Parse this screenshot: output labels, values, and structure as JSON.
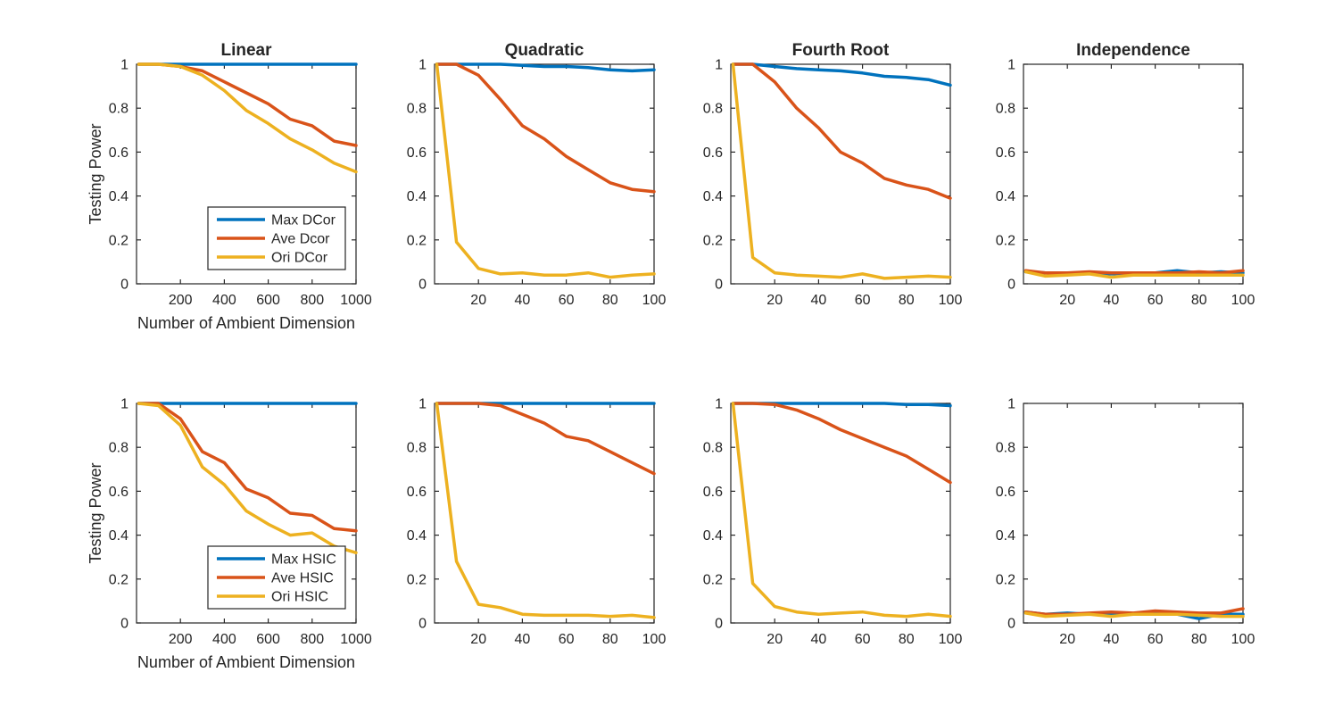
{
  "figure": {
    "background": "#ffffff",
    "description": "2x4 grid of MATLAB-style line plots of testing power vs dimension"
  },
  "colors": {
    "max": "#0072BD",
    "ave": "#D95319",
    "ori": "#EDB120",
    "axis": "#262626",
    "legend_bg": "#ffffff"
  },
  "chart_data": [
    {
      "type": "line",
      "title": "Linear",
      "xlabel": "Number of Ambient Dimension",
      "ylabel": "Testing Power",
      "x": [
        10,
        100,
        200,
        300,
        400,
        500,
        600,
        700,
        800,
        900,
        1000
      ],
      "xlim": [
        0,
        1000
      ],
      "ylim": [
        0,
        1
      ],
      "xticks": [
        200,
        400,
        600,
        800,
        1000
      ],
      "xtick_labels": [
        "200",
        "400",
        "600",
        "800",
        "1000"
      ],
      "yticks": [
        0,
        0.2,
        0.4,
        0.6,
        0.8,
        1
      ],
      "ytick_labels": [
        "0",
        "0.2",
        "0.4",
        "0.6",
        "0.8",
        "1"
      ],
      "grid": false,
      "legend_visible": true,
      "legend_position": "inside lower right",
      "series": [
        {
          "name": "Max DCor",
          "color_key": "max",
          "values": [
            1,
            1,
            1,
            1,
            1,
            1,
            1,
            1,
            1,
            1,
            1
          ]
        },
        {
          "name": "Ave Dcor",
          "color_key": "ave",
          "values": [
            1,
            1,
            0.99,
            0.97,
            0.92,
            0.87,
            0.82,
            0.75,
            0.72,
            0.65,
            0.63
          ]
        },
        {
          "name": "Ori DCor",
          "color_key": "ori",
          "values": [
            1,
            1,
            0.99,
            0.95,
            0.88,
            0.79,
            0.73,
            0.66,
            0.61,
            0.55,
            0.51
          ]
        }
      ]
    },
    {
      "type": "line",
      "title": "Quadratic",
      "xlabel": "",
      "ylabel": "",
      "x": [
        1,
        10,
        20,
        30,
        40,
        50,
        60,
        70,
        80,
        90,
        100
      ],
      "xlim": [
        0,
        100
      ],
      "ylim": [
        0,
        1
      ],
      "xticks": [
        20,
        40,
        60,
        80,
        100
      ],
      "xtick_labels": [
        "20",
        "40",
        "60",
        "80",
        "100"
      ],
      "yticks": [
        0,
        0.2,
        0.4,
        0.6,
        0.8,
        1
      ],
      "ytick_labels": [
        "0",
        "0.2",
        "0.4",
        "0.6",
        "0.8",
        "1"
      ],
      "grid": false,
      "legend_visible": false,
      "series": [
        {
          "name": "Max DCor",
          "color_key": "max",
          "values": [
            1,
            1,
            1,
            1,
            0.995,
            0.99,
            0.99,
            0.985,
            0.975,
            0.97,
            0.975
          ]
        },
        {
          "name": "Ave Dcor",
          "color_key": "ave",
          "values": [
            1,
            1,
            0.95,
            0.84,
            0.72,
            0.66,
            0.58,
            0.52,
            0.46,
            0.43,
            0.42
          ]
        },
        {
          "name": "Ori DCor",
          "color_key": "ori",
          "values": [
            1,
            0.19,
            0.07,
            0.045,
            0.05,
            0.04,
            0.04,
            0.05,
            0.03,
            0.04,
            0.045
          ]
        }
      ]
    },
    {
      "type": "line",
      "title": "Fourth Root",
      "xlabel": "",
      "ylabel": "",
      "x": [
        1,
        10,
        20,
        30,
        40,
        50,
        60,
        70,
        80,
        90,
        100
      ],
      "xlim": [
        0,
        100
      ],
      "ylim": [
        0,
        1
      ],
      "xticks": [
        20,
        40,
        60,
        80,
        100
      ],
      "xtick_labels": [
        "20",
        "40",
        "60",
        "80",
        "100"
      ],
      "yticks": [
        0,
        0.2,
        0.4,
        0.6,
        0.8,
        1
      ],
      "ytick_labels": [
        "0",
        "0.2",
        "0.4",
        "0.6",
        "0.8",
        "1"
      ],
      "grid": false,
      "legend_visible": false,
      "series": [
        {
          "name": "Max DCor",
          "color_key": "max",
          "values": [
            1,
            1,
            0.99,
            0.98,
            0.975,
            0.97,
            0.96,
            0.945,
            0.94,
            0.93,
            0.905
          ]
        },
        {
          "name": "Ave Dcor",
          "color_key": "ave",
          "values": [
            1,
            1,
            0.92,
            0.8,
            0.71,
            0.6,
            0.55,
            0.48,
            0.45,
            0.43,
            0.39
          ]
        },
        {
          "name": "Ori DCor",
          "color_key": "ori",
          "values": [
            1,
            0.12,
            0.05,
            0.04,
            0.035,
            0.03,
            0.045,
            0.025,
            0.03,
            0.035,
            0.03
          ]
        }
      ]
    },
    {
      "type": "line",
      "title": "Independence",
      "xlabel": "",
      "ylabel": "",
      "x": [
        1,
        10,
        20,
        30,
        40,
        50,
        60,
        70,
        80,
        90,
        100
      ],
      "xlim": [
        0,
        100
      ],
      "ylim": [
        0,
        1
      ],
      "xticks": [
        20,
        40,
        60,
        80,
        100
      ],
      "xtick_labels": [
        "20",
        "40",
        "60",
        "80",
        "100"
      ],
      "yticks": [
        0,
        0.2,
        0.4,
        0.6,
        0.8,
        1
      ],
      "ytick_labels": [
        "0",
        "0.2",
        "0.4",
        "0.6",
        "0.8",
        "1"
      ],
      "grid": false,
      "legend_visible": false,
      "series": [
        {
          "name": "Max DCor",
          "color_key": "max",
          "values": [
            0.055,
            0.05,
            0.05,
            0.05,
            0.045,
            0.05,
            0.05,
            0.06,
            0.05,
            0.055,
            0.05
          ]
        },
        {
          "name": "Ave Dcor",
          "color_key": "ave",
          "values": [
            0.06,
            0.05,
            0.05,
            0.055,
            0.05,
            0.05,
            0.05,
            0.05,
            0.055,
            0.05,
            0.06
          ]
        },
        {
          "name": "Ori DCor",
          "color_key": "ori",
          "values": [
            0.055,
            0.035,
            0.04,
            0.045,
            0.03,
            0.04,
            0.04,
            0.04,
            0.04,
            0.04,
            0.04
          ]
        }
      ]
    },
    {
      "type": "line",
      "title": "",
      "xlabel": "Number of Ambient Dimension",
      "ylabel": "Testing Power",
      "x": [
        10,
        100,
        200,
        300,
        400,
        500,
        600,
        700,
        800,
        900,
        1000
      ],
      "xlim": [
        0,
        1000
      ],
      "ylim": [
        0,
        1
      ],
      "xticks": [
        200,
        400,
        600,
        800,
        1000
      ],
      "xtick_labels": [
        "200",
        "400",
        "600",
        "800",
        "1000"
      ],
      "yticks": [
        0,
        0.2,
        0.4,
        0.6,
        0.8,
        1
      ],
      "ytick_labels": [
        "0",
        "0.2",
        "0.4",
        "0.6",
        "0.8",
        "1"
      ],
      "grid": false,
      "legend_visible": true,
      "legend_position": "inside lower right",
      "series": [
        {
          "name": "Max HSIC",
          "color_key": "max",
          "values": [
            1,
            1,
            1,
            1,
            1,
            1,
            1,
            1,
            1,
            1,
            1
          ]
        },
        {
          "name": "Ave HSIC",
          "color_key": "ave",
          "values": [
            1,
            1,
            0.93,
            0.78,
            0.73,
            0.61,
            0.57,
            0.5,
            0.49,
            0.43,
            0.42
          ]
        },
        {
          "name": "Ori HSIC",
          "color_key": "ori",
          "values": [
            1,
            0.99,
            0.9,
            0.71,
            0.63,
            0.51,
            0.45,
            0.4,
            0.41,
            0.35,
            0.32
          ]
        }
      ]
    },
    {
      "type": "line",
      "title": "",
      "xlabel": "",
      "ylabel": "",
      "x": [
        1,
        10,
        20,
        30,
        40,
        50,
        60,
        70,
        80,
        90,
        100
      ],
      "xlim": [
        0,
        100
      ],
      "ylim": [
        0,
        1
      ],
      "xticks": [
        20,
        40,
        60,
        80,
        100
      ],
      "xtick_labels": [
        "20",
        "40",
        "60",
        "80",
        "100"
      ],
      "yticks": [
        0,
        0.2,
        0.4,
        0.6,
        0.8,
        1
      ],
      "ytick_labels": [
        "0",
        "0.2",
        "0.4",
        "0.6",
        "0.8",
        "1"
      ],
      "grid": false,
      "legend_visible": false,
      "series": [
        {
          "name": "Max HSIC",
          "color_key": "max",
          "values": [
            1,
            1,
            1,
            1,
            1,
            1,
            1,
            1,
            1,
            1,
            1
          ]
        },
        {
          "name": "Ave HSIC",
          "color_key": "ave",
          "values": [
            1,
            1,
            1,
            0.99,
            0.95,
            0.91,
            0.85,
            0.83,
            0.78,
            0.73,
            0.68
          ]
        },
        {
          "name": "Ori HSIC",
          "color_key": "ori",
          "values": [
            1,
            0.28,
            0.085,
            0.07,
            0.04,
            0.035,
            0.035,
            0.035,
            0.03,
            0.035,
            0.025
          ]
        }
      ]
    },
    {
      "type": "line",
      "title": "",
      "xlabel": "",
      "ylabel": "",
      "x": [
        1,
        10,
        20,
        30,
        40,
        50,
        60,
        70,
        80,
        90,
        100
      ],
      "xlim": [
        0,
        100
      ],
      "ylim": [
        0,
        1
      ],
      "xticks": [
        20,
        40,
        60,
        80,
        100
      ],
      "xtick_labels": [
        "20",
        "40",
        "60",
        "80",
        "100"
      ],
      "yticks": [
        0,
        0.2,
        0.4,
        0.6,
        0.8,
        1
      ],
      "ytick_labels": [
        "0",
        "0.2",
        "0.4",
        "0.6",
        "0.8",
        "1"
      ],
      "grid": false,
      "legend_visible": false,
      "series": [
        {
          "name": "Max HSIC",
          "color_key": "max",
          "values": [
            1,
            1,
            1,
            1,
            1,
            1,
            1,
            1,
            0.995,
            0.995,
            0.99
          ]
        },
        {
          "name": "Ave HSIC",
          "color_key": "ave",
          "values": [
            1,
            1,
            0.995,
            0.97,
            0.93,
            0.88,
            0.84,
            0.8,
            0.76,
            0.7,
            0.64
          ]
        },
        {
          "name": "Ori HSIC",
          "color_key": "ori",
          "values": [
            1,
            0.18,
            0.075,
            0.05,
            0.04,
            0.045,
            0.05,
            0.035,
            0.03,
            0.04,
            0.03
          ]
        }
      ]
    },
    {
      "type": "line",
      "title": "",
      "xlabel": "",
      "ylabel": "",
      "x": [
        1,
        10,
        20,
        30,
        40,
        50,
        60,
        70,
        80,
        90,
        100
      ],
      "xlim": [
        0,
        100
      ],
      "ylim": [
        0,
        1
      ],
      "xticks": [
        20,
        40,
        60,
        80,
        100
      ],
      "xtick_labels": [
        "20",
        "40",
        "60",
        "80",
        "100"
      ],
      "yticks": [
        0,
        0.2,
        0.4,
        0.6,
        0.8,
        1
      ],
      "ytick_labels": [
        "0",
        "0.2",
        "0.4",
        "0.6",
        "0.8",
        "1"
      ],
      "grid": false,
      "legend_visible": false,
      "series": [
        {
          "name": "Max HSIC",
          "color_key": "max",
          "values": [
            0.05,
            0.04,
            0.045,
            0.04,
            0.04,
            0.04,
            0.045,
            0.04,
            0.02,
            0.04,
            0.04
          ]
        },
        {
          "name": "Ave HSIC",
          "color_key": "ave",
          "values": [
            0.05,
            0.04,
            0.04,
            0.045,
            0.05,
            0.045,
            0.055,
            0.05,
            0.045,
            0.045,
            0.065
          ]
        },
        {
          "name": "Ori HSIC",
          "color_key": "ori",
          "values": [
            0.045,
            0.03,
            0.035,
            0.04,
            0.03,
            0.04,
            0.04,
            0.04,
            0.035,
            0.03,
            0.03
          ]
        }
      ]
    }
  ]
}
